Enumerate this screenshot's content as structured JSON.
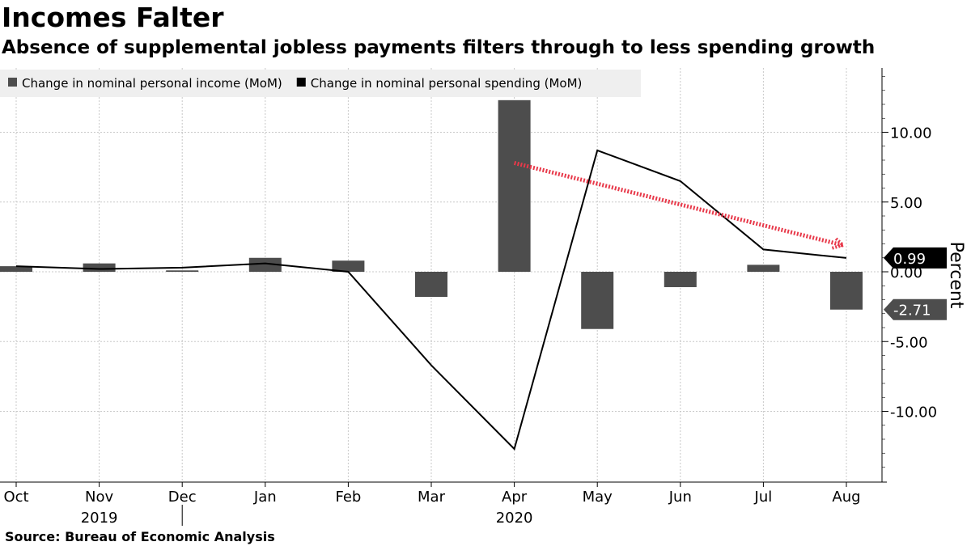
{
  "header": {
    "title": "Incomes Falter",
    "subtitle": "Absence of supplemental jobless payments filters through to less spending growth"
  },
  "footer": {
    "source": "Source:  Bureau of Economic Analysis"
  },
  "chart_data": {
    "type": "bar",
    "title": "Incomes Falter",
    "subtitle": "Absence of supplemental jobless payments filters through to less spending growth",
    "categories": [
      "Oct",
      "Nov",
      "Dec",
      "Jan",
      "Feb",
      "Mar",
      "Apr",
      "May",
      "Jun",
      "Jul",
      "Aug"
    ],
    "year_labels": [
      {
        "label": "2019",
        "category": "Nov"
      },
      {
        "label": "2020",
        "category": "Apr"
      }
    ],
    "series": [
      {
        "name": "Change in nominal personal income (MoM)",
        "kind": "bar",
        "color": "#4d4d4d",
        "values": [
          0.4,
          0.6,
          0.1,
          1.0,
          0.8,
          -1.8,
          12.3,
          -4.1,
          -1.1,
          0.5,
          -2.71
        ]
      },
      {
        "name": "Change in nominal personal spending (MoM)",
        "kind": "line",
        "color": "#000000",
        "values": [
          0.4,
          0.2,
          0.3,
          0.6,
          0.0,
          -6.7,
          -12.7,
          8.7,
          6.5,
          1.6,
          0.99
        ]
      }
    ],
    "trend_arrow": {
      "from": {
        "category": "Apr",
        "value": 7.8
      },
      "to": {
        "category": "Aug",
        "value": 1.9
      },
      "color": "#e8394a"
    },
    "value_tags": [
      {
        "label": "0.99",
        "value": 0.99,
        "color": "#000000"
      },
      {
        "label": "-2.71",
        "value": -2.71,
        "color": "#4d4d4d"
      }
    ],
    "yticks": [
      {
        "value": 10,
        "label": "10.00"
      },
      {
        "value": 5,
        "label": "5.00"
      },
      {
        "value": 0,
        "label": "0.00"
      },
      {
        "value": -5,
        "label": "-5.00"
      },
      {
        "value": -10,
        "label": "-10.00"
      }
    ],
    "ylabel": "Percent",
    "ylim": [
      -14.5,
      14.5
    ],
    "grid": true,
    "legend_position": "top-left",
    "y_axis_side": "right"
  }
}
